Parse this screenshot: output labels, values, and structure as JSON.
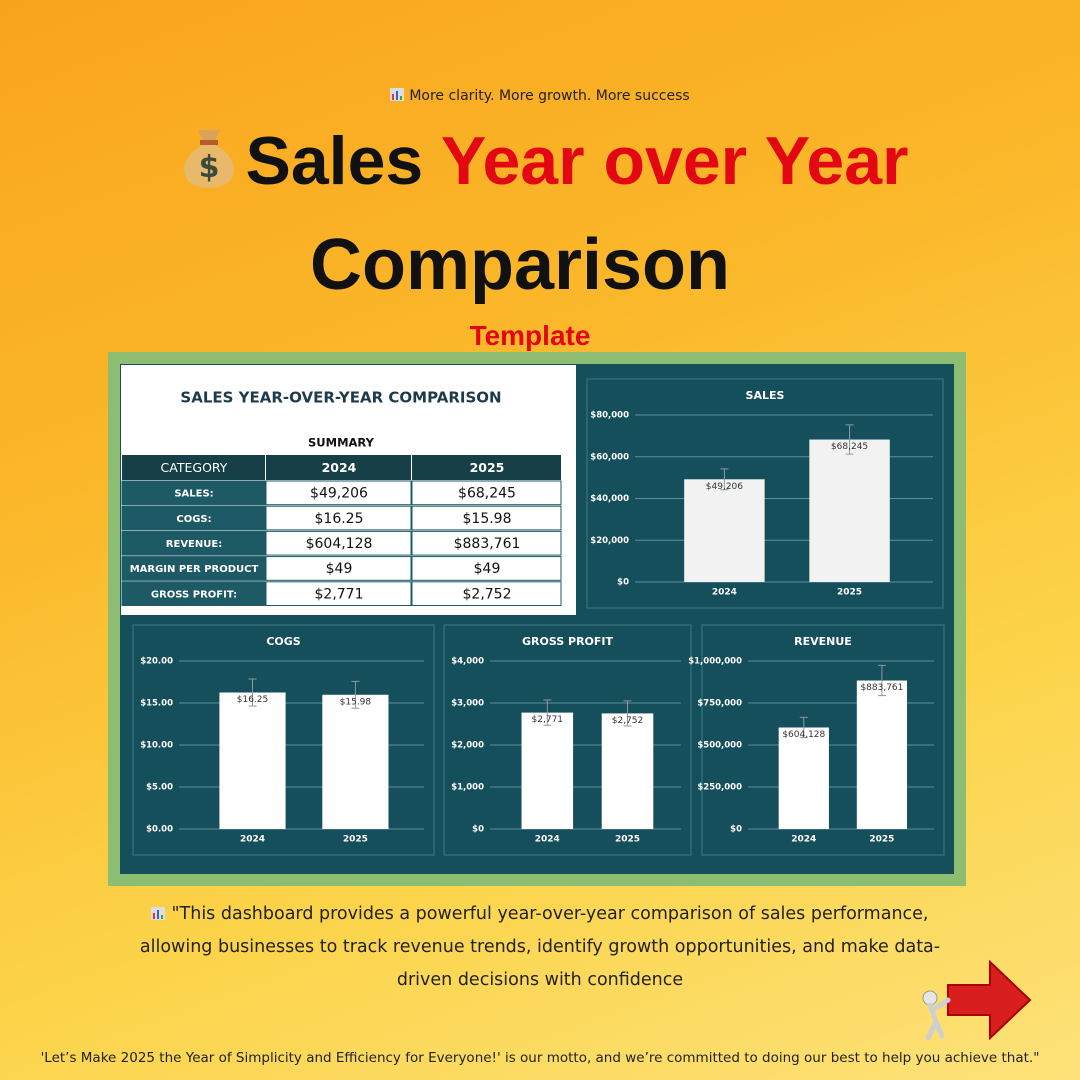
{
  "header": {
    "tagline": "More clarity. More growth. More success",
    "title_black": "Sales",
    "title_red": "Year over Year",
    "title_line2": "Comparison",
    "subtitle": "Template"
  },
  "table": {
    "title": "SALES YEAR-OVER-YEAR COMPARISON",
    "caption": "SUMMARY",
    "columns": [
      "CATEGORY",
      "2024",
      "2025"
    ],
    "rows": [
      [
        "SALES:",
        "$49,206",
        "$68,245"
      ],
      [
        "COGS:",
        "$16.25",
        "$15.98"
      ],
      [
        "REVENUE:",
        "$604,128",
        "$883,761"
      ],
      [
        "MARGIN PER PRODUCT",
        "$49",
        "$49"
      ],
      [
        "GROSS PROFIT:",
        "$2,771",
        "$2,752"
      ]
    ]
  },
  "chart_data": [
    {
      "type": "bar",
      "title": "SALES",
      "categories": [
        "2024",
        "2025"
      ],
      "values": [
        49206,
        68245
      ],
      "value_labels": [
        "$49,206",
        "$68,245"
      ],
      "errors": [
        5000,
        7000
      ],
      "color": "#f2f2f2",
      "ylim": [
        0,
        80000
      ],
      "yticks": [
        {
          "value": 0,
          "label": "$0"
        },
        {
          "value": 20000,
          "label": "$20,000"
        },
        {
          "value": 40000,
          "label": "$40,000"
        },
        {
          "value": 60000,
          "label": "$60,000"
        },
        {
          "value": 80000,
          "label": "$80,000"
        }
      ],
      "grid": true
    },
    {
      "type": "bar",
      "title": "COGS",
      "categories": [
        "2024",
        "2025"
      ],
      "values": [
        16.25,
        15.98
      ],
      "value_labels": [
        "$16.25",
        "$15.98"
      ],
      "errors": [
        1.6,
        1.6
      ],
      "color": "#ffffff",
      "ylim": [
        0,
        20
      ],
      "yticks": [
        {
          "value": 0,
          "label": "$0.00"
        },
        {
          "value": 5,
          "label": "$5.00"
        },
        {
          "value": 10,
          "label": "$10.00"
        },
        {
          "value": 15,
          "label": "$15.00"
        },
        {
          "value": 20,
          "label": "$20.00"
        }
      ],
      "grid": true
    },
    {
      "type": "bar",
      "title": "GROSS PROFIT",
      "categories": [
        "2024",
        "2025"
      ],
      "values": [
        2771,
        2752
      ],
      "value_labels": [
        "$2,771",
        "$2,752"
      ],
      "errors": [
        300,
        300
      ],
      "color": "#ffffff",
      "ylim": [
        0,
        4000
      ],
      "yticks": [
        {
          "value": 0,
          "label": "$0"
        },
        {
          "value": 1000,
          "label": "$1,000"
        },
        {
          "value": 2000,
          "label": "$2,000"
        },
        {
          "value": 3000,
          "label": "$3,000"
        },
        {
          "value": 4000,
          "label": "$4,000"
        }
      ],
      "grid": true
    },
    {
      "type": "bar",
      "title": "REVENUE",
      "categories": [
        "2024",
        "2025"
      ],
      "values": [
        604128,
        883761
      ],
      "value_labels": [
        "$604,128",
        "$883,761"
      ],
      "errors": [
        60000,
        90000
      ],
      "color": "#ffffff",
      "ylim": [
        0,
        1000000
      ],
      "yticks": [
        {
          "value": 0,
          "label": "$0"
        },
        {
          "value": 250000,
          "label": "$250,000"
        },
        {
          "value": 500000,
          "label": "$500,000"
        },
        {
          "value": 750000,
          "label": "$750,000"
        },
        {
          "value": 1000000,
          "label": "$1,000,000"
        }
      ],
      "grid": true
    }
  ],
  "description": "\"This dashboard provides a powerful year-over-year comparison of sales performance, allowing businesses to track revenue trends, identify growth opportunities, and make data-driven decisions with confidence",
  "footer": "'Let’s Make 2025 the Year of Simplicity and Efficiency for Everyone!' is our motto, and we’re committed to doing our best to help you achieve that.\""
}
